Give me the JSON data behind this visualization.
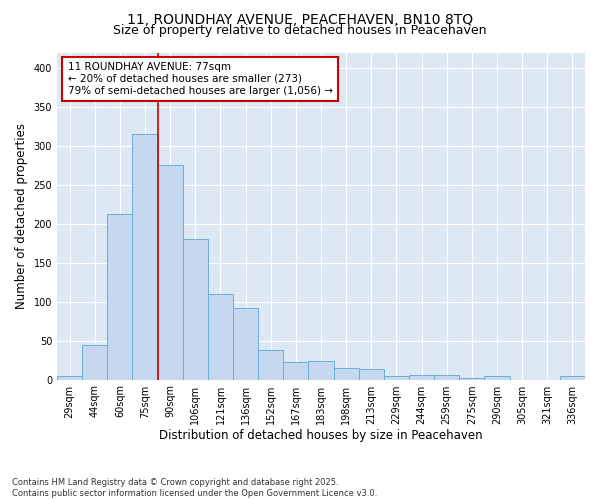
{
  "title1": "11, ROUNDHAY AVENUE, PEACEHAVEN, BN10 8TQ",
  "title2": "Size of property relative to detached houses in Peacehaven",
  "xlabel": "Distribution of detached houses by size in Peacehaven",
  "ylabel": "Number of detached properties",
  "categories": [
    "29sqm",
    "44sqm",
    "60sqm",
    "75sqm",
    "90sqm",
    "106sqm",
    "121sqm",
    "136sqm",
    "152sqm",
    "167sqm",
    "183sqm",
    "198sqm",
    "213sqm",
    "229sqm",
    "244sqm",
    "259sqm",
    "275sqm",
    "290sqm",
    "305sqm",
    "321sqm",
    "336sqm"
  ],
  "values": [
    5,
    45,
    212,
    315,
    275,
    180,
    110,
    92,
    38,
    22,
    24,
    15,
    13,
    5,
    6,
    6,
    2,
    4,
    0,
    0,
    4
  ],
  "bar_color": "#c5d8f0",
  "bar_edge_color": "#6baed6",
  "background_color": "#dde8f5",
  "vline_color": "#cc0000",
  "annotation_line1": "11 ROUNDHAY AVENUE: 77sqm",
  "annotation_line2": "← 20% of detached houses are smaller (273)",
  "annotation_line3": "79% of semi-detached houses are larger (1,056) →",
  "annotation_box_color": "#cc0000",
  "ylim": [
    0,
    420
  ],
  "yticks": [
    0,
    50,
    100,
    150,
    200,
    250,
    300,
    350,
    400
  ],
  "footer": "Contains HM Land Registry data © Crown copyright and database right 2025.\nContains public sector information licensed under the Open Government Licence v3.0.",
  "title_fontsize": 10,
  "subtitle_fontsize": 9,
  "axis_label_fontsize": 8.5,
  "tick_fontsize": 7,
  "annotation_fontsize": 7.5,
  "footer_fontsize": 6
}
